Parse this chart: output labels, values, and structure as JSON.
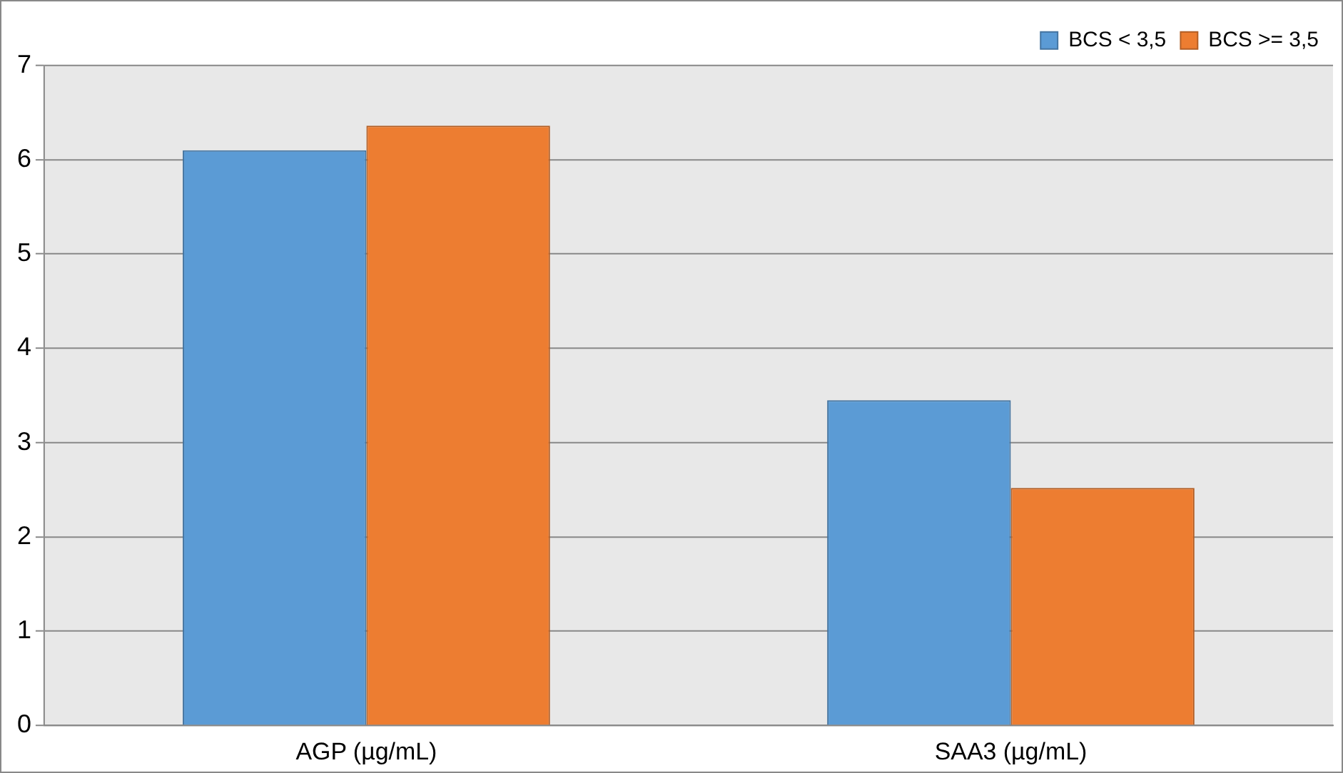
{
  "chart_data": {
    "type": "bar",
    "categories": [
      "AGP (µg/mL)",
      "SAA3 (µg/mL)"
    ],
    "series": [
      {
        "name": "BCS < 3,5",
        "color": "#5b9bd5",
        "values": [
          6.1,
          3.45
        ]
      },
      {
        "name": "BCS >= 3,5",
        "color": "#ed7d31",
        "values": [
          6.36,
          2.52
        ]
      }
    ],
    "ylim": [
      0,
      7
    ],
    "yticks": [
      0,
      1,
      2,
      3,
      4,
      5,
      6,
      7
    ],
    "grid": "y",
    "legend": "top right"
  }
}
